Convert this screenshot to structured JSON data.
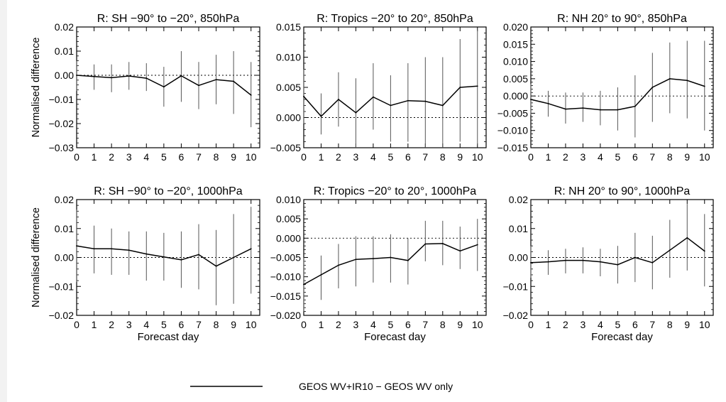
{
  "figure": {
    "legend_label": "GEOS WV+IR10 − GEOS WV only",
    "legend_color": "#000000",
    "zero_line_color": "#000000"
  },
  "chart_data": [
    {
      "type": "line",
      "title": "R: SH −90° to −20°, 850hPa",
      "xlabel": "",
      "ylabel": "Normalised difference",
      "x": [
        0,
        1,
        2,
        3,
        4,
        5,
        6,
        7,
        8,
        9,
        10
      ],
      "xticks": [
        "0",
        "1",
        "2",
        "3",
        "4",
        "5",
        "6",
        "7",
        "8",
        "9",
        "10"
      ],
      "xlim": [
        0,
        10.5
      ],
      "ylim": [
        -0.03,
        0.02
      ],
      "yticks": [
        -0.03,
        -0.02,
        -0.01,
        0.0,
        0.01,
        0.02
      ],
      "ytick_labels": [
        "−0.03",
        "−0.02",
        "−0.01",
        "0.00",
        "0.01",
        "0.02"
      ],
      "series": [
        {
          "name": "GEOS WV+IR10 − GEOS WV only",
          "values": [
            0.0,
            -0.0005,
            -0.001,
            -0.0003,
            -0.0012,
            -0.0048,
            -0.0002,
            -0.0042,
            -0.0018,
            -0.0025,
            -0.0082
          ],
          "err_low": [
            -0.0065,
            -0.006,
            -0.007,
            -0.006,
            -0.0065,
            -0.013,
            -0.011,
            -0.014,
            -0.012,
            -0.016,
            -0.0215
          ],
          "err_high": [
            0.006,
            0.0045,
            0.0045,
            0.0055,
            0.005,
            0.0035,
            0.01,
            0.0055,
            0.0085,
            0.01,
            0.0055
          ]
        }
      ]
    },
    {
      "type": "line",
      "title": "R: Tropics −20° to 20°, 850hPa",
      "xlabel": "",
      "ylabel": "",
      "x": [
        0,
        1,
        2,
        3,
        4,
        5,
        6,
        7,
        8,
        9,
        10
      ],
      "xticks": [
        "0",
        "1",
        "2",
        "3",
        "4",
        "5",
        "6",
        "7",
        "8",
        "9",
        "10"
      ],
      "xlim": [
        0,
        10.5
      ],
      "ylim": [
        -0.005,
        0.015
      ],
      "yticks": [
        -0.005,
        0.0,
        0.005,
        0.01,
        0.015
      ],
      "ytick_labels": [
        "−0.005",
        "0.000",
        "0.005",
        "0.010",
        "0.015"
      ],
      "series": [
        {
          "name": "GEOS WV+IR10 − GEOS WV only",
          "values": [
            0.0035,
            0.0002,
            0.003,
            0.0008,
            0.0034,
            0.002,
            0.0028,
            0.0027,
            0.002,
            0.005,
            0.0052
          ],
          "err_low": [
            -0.001,
            -0.0028,
            -0.0015,
            -0.005,
            -0.002,
            -0.004,
            -0.004,
            -0.005,
            -0.0055,
            -0.004,
            -0.0045
          ],
          "err_high": [
            0.008,
            0.004,
            0.0075,
            0.0065,
            0.009,
            0.007,
            0.009,
            0.01,
            0.01,
            0.013,
            0.0145
          ]
        }
      ]
    },
    {
      "type": "line",
      "title": "R: NH 20° to 90°, 850hPa",
      "xlabel": "",
      "ylabel": "",
      "x": [
        0,
        1,
        2,
        3,
        4,
        5,
        6,
        7,
        8,
        9,
        10
      ],
      "xticks": [
        "0",
        "1",
        "2",
        "3",
        "4",
        "5",
        "6",
        "7",
        "8",
        "9",
        "10"
      ],
      "xlim": [
        0,
        10.5
      ],
      "ylim": [
        -0.015,
        0.02
      ],
      "yticks": [
        -0.015,
        -0.01,
        -0.005,
        0.0,
        0.005,
        0.01,
        0.015,
        0.02
      ],
      "ytick_labels": [
        "−0.015",
        "−0.010",
        "−0.005",
        "0.000",
        "0.005",
        "0.010",
        "0.015",
        "0.020"
      ],
      "series": [
        {
          "name": "GEOS WV+IR10 − GEOS WV only",
          "values": [
            -0.001,
            -0.0022,
            -0.0038,
            -0.0035,
            -0.004,
            -0.004,
            -0.003,
            0.0025,
            0.005,
            0.0045,
            0.0028
          ],
          "err_low": [
            -0.0055,
            -0.006,
            -0.008,
            -0.0075,
            -0.0085,
            -0.01,
            -0.012,
            -0.0075,
            -0.005,
            -0.0065,
            -0.01
          ],
          "err_high": [
            0.0035,
            0.0015,
            0.001,
            0.001,
            0.0015,
            0.0025,
            0.006,
            0.0125,
            0.0155,
            0.016,
            0.016
          ]
        }
      ]
    },
    {
      "type": "line",
      "title": "R: SH −90° to −20°, 1000hPa",
      "xlabel": "Forecast day",
      "ylabel": "Normalised difference",
      "x": [
        0,
        1,
        2,
        3,
        4,
        5,
        6,
        7,
        8,
        9,
        10
      ],
      "xticks": [
        "0",
        "1",
        "2",
        "3",
        "4",
        "5",
        "6",
        "7",
        "8",
        "9",
        "10"
      ],
      "xlim": [
        0,
        10.5
      ],
      "ylim": [
        -0.02,
        0.02
      ],
      "yticks": [
        -0.02,
        -0.01,
        0.0,
        0.01,
        0.02
      ],
      "ytick_labels": [
        "−0.02",
        "−0.01",
        "0.00",
        "0.01",
        "0.02"
      ],
      "series": [
        {
          "name": "GEOS WV+IR10 − GEOS WV only",
          "values": [
            0.004,
            0.003,
            0.003,
            0.0025,
            0.0012,
            0.0002,
            -0.0008,
            0.001,
            -0.003,
            0.0,
            0.003
          ],
          "err_low": [
            -0.0085,
            -0.0055,
            -0.006,
            -0.006,
            -0.008,
            -0.008,
            -0.0105,
            -0.011,
            -0.0165,
            -0.016,
            -0.0125
          ],
          "err_high": [
            0.0165,
            0.011,
            0.01,
            0.009,
            0.009,
            0.0085,
            0.009,
            0.0115,
            0.0095,
            0.015,
            0.0175
          ]
        }
      ]
    },
    {
      "type": "line",
      "title": "R: Tropics −20° to 20°, 1000hPa",
      "xlabel": "Forecast day",
      "ylabel": "",
      "x": [
        0,
        1,
        2,
        3,
        4,
        5,
        6,
        7,
        8,
        9,
        10
      ],
      "xticks": [
        "0",
        "1",
        "2",
        "3",
        "4",
        "5",
        "6",
        "7",
        "8",
        "9",
        "10"
      ],
      "xlim": [
        0,
        10.5
      ],
      "ylim": [
        -0.02,
        0.01
      ],
      "yticks": [
        -0.02,
        -0.015,
        -0.01,
        -0.005,
        0.0,
        0.005,
        0.01
      ],
      "ytick_labels": [
        "−0.020",
        "−0.015",
        "−0.010",
        "−0.005",
        "0.000",
        "0.005",
        "0.010"
      ],
      "series": [
        {
          "name": "GEOS WV+IR10 − GEOS WV only",
          "values": [
            -0.012,
            -0.0095,
            -0.007,
            -0.0055,
            -0.0053,
            -0.005,
            -0.0058,
            -0.0015,
            -0.0014,
            -0.0033,
            -0.0017
          ],
          "err_low": [
            -0.019,
            -0.016,
            -0.013,
            -0.0125,
            -0.0115,
            -0.0115,
            -0.012,
            -0.006,
            -0.007,
            -0.008,
            -0.0085
          ],
          "err_high": [
            -0.005,
            -0.0045,
            -0.0015,
            0.0005,
            0.0005,
            0.001,
            0.0,
            0.0045,
            0.0045,
            0.003,
            0.005
          ]
        }
      ]
    },
    {
      "type": "line",
      "title": "R: NH 20° to 90°, 1000hPa",
      "xlabel": "Forecast day",
      "ylabel": "",
      "x": [
        0,
        1,
        2,
        3,
        4,
        5,
        6,
        7,
        8,
        9,
        10
      ],
      "xticks": [
        "0",
        "1",
        "2",
        "3",
        "4",
        "5",
        "6",
        "7",
        "8",
        "9",
        "10"
      ],
      "xlim": [
        0,
        10.5
      ],
      "ylim": [
        -0.02,
        0.02
      ],
      "yticks": [
        -0.02,
        -0.01,
        0.0,
        0.01,
        0.02
      ],
      "ytick_labels": [
        "−0.02",
        "−0.01",
        "0.00",
        "0.01",
        "0.02"
      ],
      "series": [
        {
          "name": "GEOS WV+IR10 − GEOS WV only",
          "values": [
            -0.0018,
            -0.0015,
            -0.001,
            -0.001,
            -0.0015,
            -0.0025,
            0.0,
            -0.0018,
            0.0025,
            0.0068,
            0.0022
          ],
          "err_low": [
            -0.007,
            -0.006,
            -0.0055,
            -0.0055,
            -0.0065,
            -0.009,
            -0.0085,
            -0.011,
            -0.007,
            -0.0045,
            -0.01
          ],
          "err_high": [
            0.004,
            0.0025,
            0.003,
            0.0035,
            0.003,
            0.004,
            0.0085,
            0.0075,
            0.013,
            0.0185,
            0.015
          ]
        }
      ]
    }
  ]
}
